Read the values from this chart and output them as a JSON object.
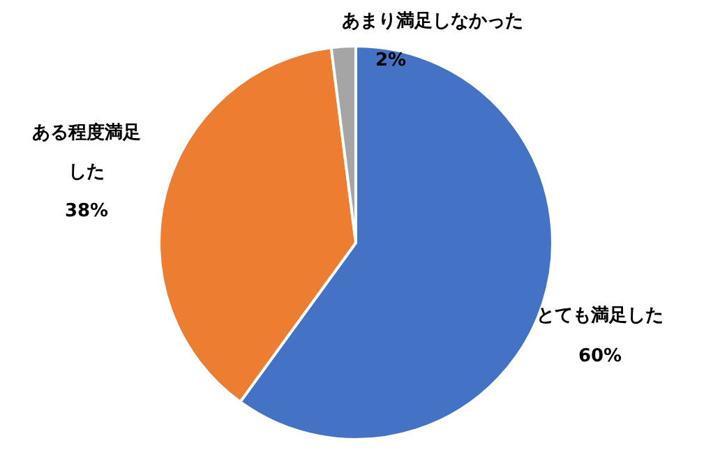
{
  "chart_data": {
    "type": "pie",
    "categories": [
      "とても満足した",
      "ある程度満足した",
      "あまり満足しなかった"
    ],
    "values": [
      60,
      38,
      2
    ],
    "colors": [
      "#4472c4",
      "#ed7d31",
      "#a5a5a5"
    ],
    "value_labels": [
      "60%",
      "38%",
      "2%"
    ]
  }
}
